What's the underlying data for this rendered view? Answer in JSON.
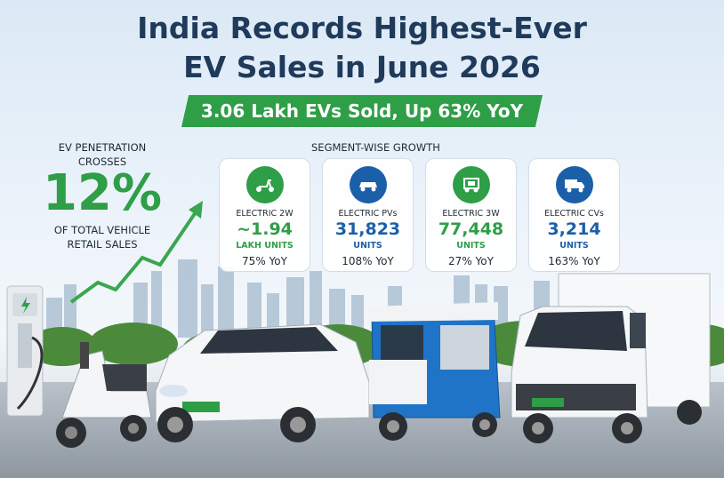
{
  "title_line1": "India Records Highest-Ever",
  "title_line2": "EV Sales in June 2026",
  "banner": "3.06 Lakh EVs Sold, Up 63% YoY",
  "penetration": {
    "top": "EV PENETRATION CROSSES",
    "value": "12%",
    "bottom": "OF TOTAL VEHICLE RETAIL SALES"
  },
  "segments_title": "SEGMENT-WISE GROWTH",
  "segments": [
    {
      "name": "ELECTRIC 2W",
      "value": "~1.94",
      "unit": "LAKH UNITS",
      "yoy": "75% YoY",
      "icon": "scooter-icon",
      "color": "#2e9e47"
    },
    {
      "name": "ELECTRIC PVs",
      "value": "31,823",
      "unit": "UNITS",
      "yoy": "108% YoY",
      "icon": "car-icon",
      "color": "#1b5fa8"
    },
    {
      "name": "ELECTRIC 3W",
      "value": "77,448",
      "unit": "UNITS",
      "yoy": "27% YoY",
      "icon": "rickshaw-icon",
      "color": "#2e9e47"
    },
    {
      "name": "ELECTRIC CVs",
      "value": "3,214",
      "unit": "UNITS",
      "yoy": "163% YoY",
      "icon": "truck-icon",
      "color": "#1b5fa8"
    }
  ],
  "colors": {
    "green": "#2e9e47",
    "blue": "#1b5fa8",
    "title": "#1f3a5a"
  }
}
